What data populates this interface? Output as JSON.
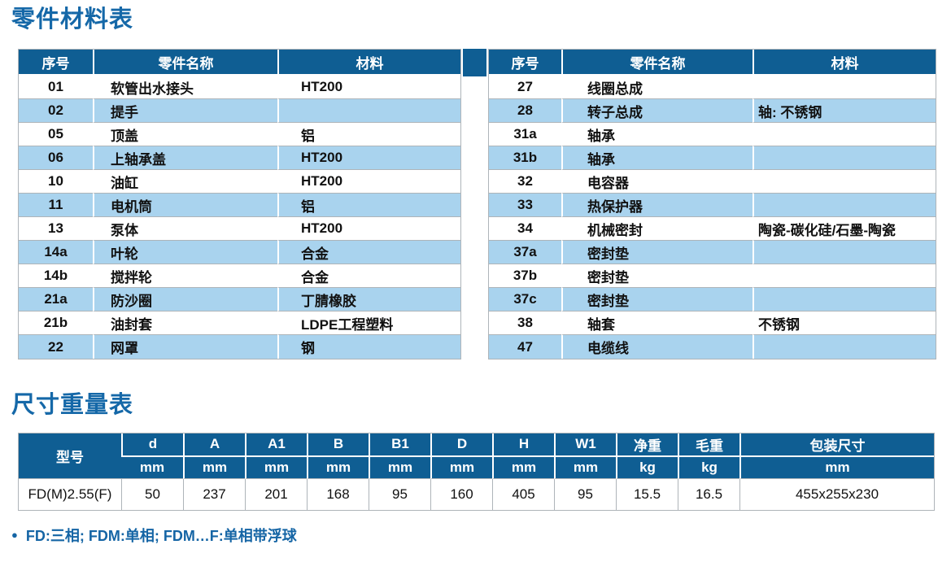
{
  "colors": {
    "header_bg": "#0F5E93",
    "row_alt": "#A9D3EE",
    "title_blue": "#1568A8",
    "note_blue": "#1565A5",
    "border_gray": "#AEB4B9"
  },
  "parts_table": {
    "title": "零件材料表",
    "columns": [
      "序号",
      "零件名称",
      "材料"
    ],
    "left_rows": [
      {
        "no": "01",
        "name": "软管出水接头",
        "material": "HT200"
      },
      {
        "no": "02",
        "name": "提手",
        "material": ""
      },
      {
        "no": "05",
        "name": "顶盖",
        "material": "铝"
      },
      {
        "no": "06",
        "name": "上轴承盖",
        "material": "HT200"
      },
      {
        "no": "10",
        "name": "油缸",
        "material": "HT200"
      },
      {
        "no": "11",
        "name": "电机筒",
        "material": "铝"
      },
      {
        "no": "13",
        "name": "泵体",
        "material": "HT200"
      },
      {
        "no": "14a",
        "name": "叶轮",
        "material": "合金"
      },
      {
        "no": "14b",
        "name": "搅拌轮",
        "material": "合金"
      },
      {
        "no": "21a",
        "name": "防沙圈",
        "material": "丁腈橡胶"
      },
      {
        "no": "21b",
        "name": "油封套",
        "material": "LDPE工程塑料"
      },
      {
        "no": "22",
        "name": "网罩",
        "material": "钢"
      }
    ],
    "right_rows": [
      {
        "no": "27",
        "name": "线圈总成",
        "material": ""
      },
      {
        "no": "28",
        "name": "转子总成",
        "material": "轴: 不锈钢"
      },
      {
        "no": "31a",
        "name": "轴承",
        "material": ""
      },
      {
        "no": "31b",
        "name": "轴承",
        "material": ""
      },
      {
        "no": "32",
        "name": "电容器",
        "material": ""
      },
      {
        "no": "33",
        "name": "热保护器",
        "material": ""
      },
      {
        "no": "34",
        "name": "机械密封",
        "material": "陶瓷-碳化硅/石墨-陶瓷"
      },
      {
        "no": "37a",
        "name": "密封垫",
        "material": ""
      },
      {
        "no": "37b",
        "name": "密封垫",
        "material": ""
      },
      {
        "no": "37c",
        "name": "密封垫",
        "material": ""
      },
      {
        "no": "38",
        "name": "轴套",
        "material": "不锈钢"
      },
      {
        "no": "47",
        "name": "电缆线",
        "material": ""
      }
    ]
  },
  "dims_table": {
    "title": "尺寸重量表",
    "model_header": "型号",
    "columns": [
      {
        "label": "d",
        "unit": "mm"
      },
      {
        "label": "A",
        "unit": "mm"
      },
      {
        "label": "A1",
        "unit": "mm"
      },
      {
        "label": "B",
        "unit": "mm"
      },
      {
        "label": "B1",
        "unit": "mm"
      },
      {
        "label": "D",
        "unit": "mm"
      },
      {
        "label": "H",
        "unit": "mm"
      },
      {
        "label": "W1",
        "unit": "mm"
      },
      {
        "label": "净重",
        "unit": "kg"
      },
      {
        "label": "毛重",
        "unit": "kg"
      },
      {
        "label": "包装尺寸",
        "unit": "mm"
      }
    ],
    "row": {
      "model": "FD(M)2.55(F)",
      "values": [
        "50",
        "237",
        "201",
        "168",
        "95",
        "160",
        "405",
        "95",
        "15.5",
        "16.5",
        "455x255x230"
      ]
    }
  },
  "footnote": {
    "bullet": "●",
    "text": "FD:三相; FDM:单相; FDM…F:单相带浮球"
  }
}
